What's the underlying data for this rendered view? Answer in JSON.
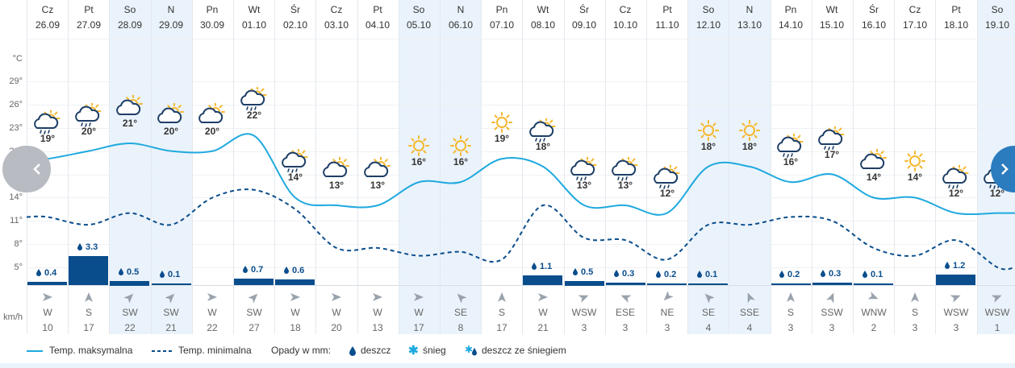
{
  "units": {
    "temp": "°C",
    "wind": "km/h"
  },
  "y_ticks": [
    "29°",
    "26°",
    "23°",
    "20°",
    "17°",
    "14°",
    "11°",
    "8°",
    "5°"
  ],
  "colors": {
    "max_line": "#1fa9df",
    "min_line": "#0a4d8c",
    "precip_bar": "#0a4d8c",
    "weekend_bg": "#eaf3fb",
    "sun": "#f5b82e",
    "cloud": "#1d3e66"
  },
  "days": [
    {
      "name": "Cz",
      "date": "26.09",
      "icon": "sun-rain-icon",
      "max": "19°",
      "precip": "0.4",
      "wind_dir": "W",
      "wind_speed": "10"
    },
    {
      "name": "Pt",
      "date": "27.09",
      "icon": "sun-rain-icon",
      "max": "20°",
      "precip": "3.3",
      "wind_dir": "S",
      "wind_speed": "17"
    },
    {
      "name": "So",
      "date": "28.09",
      "icon": "partly-cloudy-icon",
      "max": "21°",
      "precip": "0.5",
      "wind_dir": "SW",
      "wind_speed": "22",
      "weekend": true
    },
    {
      "name": "N",
      "date": "29.09",
      "icon": "partly-cloudy-icon",
      "max": "20°",
      "precip": "0.1",
      "wind_dir": "SW",
      "wind_speed": "21",
      "weekend": true
    },
    {
      "name": "Pn",
      "date": "30.09",
      "icon": "partly-cloudy-icon",
      "max": "20°",
      "precip": "",
      "wind_dir": "W",
      "wind_speed": "22"
    },
    {
      "name": "Wt",
      "date": "01.10",
      "icon": "sun-rain-icon",
      "max": "22°",
      "precip": "0.7",
      "wind_dir": "SW",
      "wind_speed": "27"
    },
    {
      "name": "Śr",
      "date": "02.10",
      "icon": "sun-rain-icon",
      "max": "14°",
      "precip": "0.6",
      "wind_dir": "W",
      "wind_speed": "18"
    },
    {
      "name": "Cz",
      "date": "03.10",
      "icon": "partly-cloudy-icon",
      "max": "13°",
      "precip": "",
      "wind_dir": "W",
      "wind_speed": "20"
    },
    {
      "name": "Pt",
      "date": "04.10",
      "icon": "partly-cloudy-icon",
      "max": "13°",
      "precip": "",
      "wind_dir": "W",
      "wind_speed": "13"
    },
    {
      "name": "So",
      "date": "05.10",
      "icon": "sun-icon",
      "max": "16°",
      "precip": "",
      "wind_dir": "W",
      "wind_speed": "17",
      "weekend": true
    },
    {
      "name": "N",
      "date": "06.10",
      "icon": "sun-icon",
      "max": "16°",
      "precip": "",
      "wind_dir": "SE",
      "wind_speed": "8",
      "weekend": true
    },
    {
      "name": "Pn",
      "date": "07.10",
      "icon": "sun-icon",
      "max": "19°",
      "precip": "",
      "wind_dir": "S",
      "wind_speed": "17"
    },
    {
      "name": "Wt",
      "date": "08.10",
      "icon": "sun-rain-icon",
      "max": "18°",
      "precip": "1.1",
      "wind_dir": "W",
      "wind_speed": "21"
    },
    {
      "name": "Śr",
      "date": "09.10",
      "icon": "sun-rain-icon",
      "max": "13°",
      "precip": "0.5",
      "wind_dir": "WSW",
      "wind_speed": "3"
    },
    {
      "name": "Cz",
      "date": "10.10",
      "icon": "sun-rain-icon",
      "max": "13°",
      "precip": "0.3",
      "wind_dir": "ESE",
      "wind_speed": "3"
    },
    {
      "name": "Pt",
      "date": "11.10",
      "icon": "sun-rain-icon",
      "max": "12°",
      "precip": "0.2",
      "wind_dir": "NE",
      "wind_speed": "3"
    },
    {
      "name": "So",
      "date": "12.10",
      "icon": "sun-icon",
      "max": "18°",
      "precip": "0.1",
      "wind_dir": "SE",
      "wind_speed": "4",
      "weekend": true
    },
    {
      "name": "N",
      "date": "13.10",
      "icon": "sun-icon",
      "max": "18°",
      "precip": "",
      "wind_dir": "SSE",
      "wind_speed": "4",
      "weekend": true
    },
    {
      "name": "Pn",
      "date": "14.10",
      "icon": "sun-rain-icon",
      "max": "16°",
      "precip": "0.2",
      "wind_dir": "S",
      "wind_speed": "3"
    },
    {
      "name": "Wt",
      "date": "15.10",
      "icon": "sun-rain-icon",
      "max": "17°",
      "precip": "0.3",
      "wind_dir": "SSW",
      "wind_speed": "3"
    },
    {
      "name": "Śr",
      "date": "16.10",
      "icon": "partly-cloudy-icon",
      "max": "14°",
      "precip": "0.1",
      "wind_dir": "WNW",
      "wind_speed": "2"
    },
    {
      "name": "Cz",
      "date": "17.10",
      "icon": "sun-icon",
      "max": "14°",
      "precip": "",
      "wind_dir": "S",
      "wind_speed": "3"
    },
    {
      "name": "Pt",
      "date": "18.10",
      "icon": "sun-rain-icon",
      "max": "12°",
      "precip": "1.2",
      "wind_dir": "WSW",
      "wind_speed": "3"
    },
    {
      "name": "So",
      "date": "19.10",
      "icon": "sun-rain-icon",
      "max": "12°",
      "precip": "",
      "wind_dir": "WSW",
      "wind_speed": "1",
      "weekend": true
    }
  ],
  "legend": {
    "max_label": "Temp. maksymalna",
    "min_label": "Temp. minimalna",
    "precip_label": "Opady w mm:",
    "rain_label": "deszcz",
    "snow_label": "śnieg",
    "mixed_label": "deszcz ze śniegiem"
  },
  "chart_data": {
    "type": "line",
    "x": [
      "26.09",
      "27.09",
      "28.09",
      "29.09",
      "30.09",
      "01.10",
      "02.10",
      "03.10",
      "04.10",
      "05.10",
      "06.10",
      "07.10",
      "08.10",
      "09.10",
      "10.10",
      "11.10",
      "12.10",
      "13.10",
      "14.10",
      "15.10",
      "16.10",
      "17.10",
      "18.10",
      "19.10"
    ],
    "ylim": [
      3,
      31
    ],
    "series": [
      {
        "name": "Temp. maksymalna",
        "values": [
          19,
          20,
          21,
          20,
          20,
          22,
          14,
          13,
          13,
          16,
          16,
          19,
          18,
          13,
          13,
          12,
          18,
          18,
          16,
          17,
          14,
          14,
          12,
          12
        ]
      },
      {
        "name": "Temp. minimalna",
        "values": [
          11.5,
          10.5,
          12,
          10.5,
          14,
          15,
          12.5,
          7.5,
          7.5,
          6.5,
          7,
          6,
          13,
          8.8,
          8.5,
          6,
          10.5,
          10.5,
          11.5,
          11,
          7.5,
          6.5,
          8.5,
          5
        ]
      },
      {
        "name": "Opady w mm",
        "values": [
          0.4,
          3.3,
          0.5,
          0.1,
          0,
          0.7,
          0.6,
          0,
          0,
          0,
          0,
          0,
          1.1,
          0.5,
          0.3,
          0.2,
          0.1,
          0,
          0.2,
          0.3,
          0.1,
          0,
          1.2,
          0
        ]
      }
    ]
  }
}
